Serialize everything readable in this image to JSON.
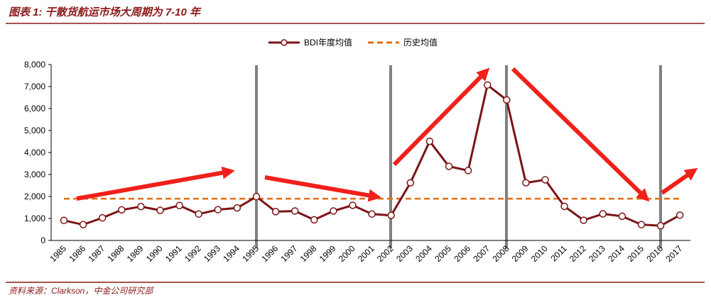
{
  "title": "图表 1: 干散货航运市场大周期为 7-10 年",
  "source": "资料来源：Clarkson，中金公司研究部",
  "chart_data": {
    "type": "line",
    "categories": [
      "1985",
      "1986",
      "1987",
      "1988",
      "1989",
      "1990",
      "1991",
      "1992",
      "1993",
      "1994",
      "1995",
      "1996",
      "1997",
      "1998",
      "1999",
      "2000",
      "2001",
      "2002",
      "2003",
      "2004",
      "2005",
      "2006",
      "2007",
      "2008",
      "2009",
      "2010",
      "2011",
      "2012",
      "2013",
      "2014",
      "2015",
      "2016",
      "2017"
    ],
    "series": [
      {
        "name": "BDI年度均值",
        "color": "#7b1416",
        "values": [
          910,
          720,
          1030,
          1390,
          1540,
          1370,
          1590,
          1200,
          1400,
          1480,
          1990,
          1310,
          1340,
          940,
          1340,
          1600,
          1200,
          1140,
          2620,
          4510,
          3370,
          3180,
          7070,
          6390,
          2620,
          2760,
          1550,
          920,
          1210,
          1100,
          720,
          670,
          1150
        ]
      },
      {
        "name": "历史均值",
        "color": "#e36c0a",
        "dashed": true,
        "values": [
          1900,
          1900,
          1900,
          1900,
          1900,
          1900,
          1900,
          1900,
          1900,
          1900,
          1900,
          1900,
          1900,
          1900,
          1900,
          1900,
          1900,
          1900,
          1900,
          1900,
          1900,
          1900,
          1900,
          1900,
          1900,
          1900,
          1900,
          1900,
          1900,
          1900,
          1900,
          1900,
          1900
        ]
      }
    ],
    "ylim": [
      0,
      8000
    ],
    "yticks": [
      0,
      {
        "value": 1000,
        "label": "1,000"
      },
      {
        "value": 2000,
        "label": "2,000"
      },
      {
        "value": 3000,
        "label": "3,000"
      },
      {
        "value": 4000,
        "label": "4,000"
      },
      {
        "value": 5000,
        "label": "5,000"
      },
      {
        "value": 6000,
        "label": "6,000"
      },
      {
        "value": 7000,
        "label": "7,000"
      },
      {
        "value": 8000,
        "label": "8,000"
      }
    ],
    "legend": "top"
  }
}
